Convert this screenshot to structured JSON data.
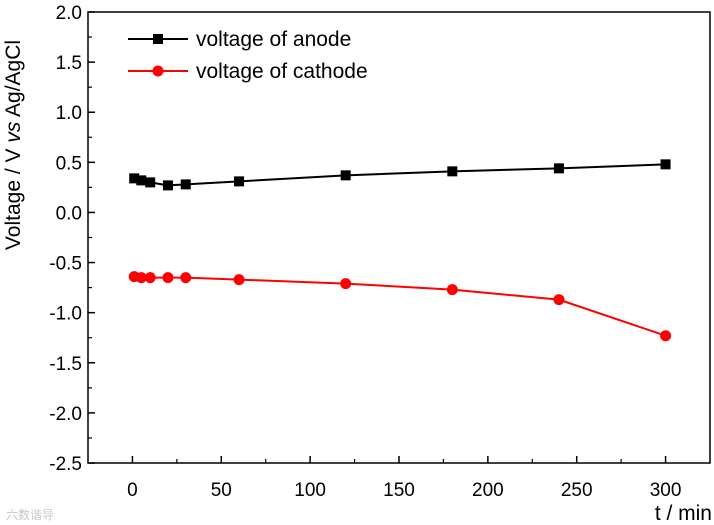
{
  "chart_data": {
    "type": "line",
    "xlabel": "t / min",
    "ylabel_parts": [
      "Voltage / V ",
      "vs",
      " Ag/AgCl"
    ],
    "xlim": [
      -25,
      325
    ],
    "ylim": [
      -2.5,
      2.0
    ],
    "xticks": [
      0,
      50,
      100,
      150,
      200,
      250,
      300
    ],
    "yticks": [
      -2.5,
      -2.0,
      -1.5,
      -1.0,
      -0.5,
      0.0,
      0.5,
      1.0,
      1.5,
      2.0
    ],
    "xtick_labels": [
      "0",
      "50",
      "100",
      "150",
      "200",
      "250",
      "300"
    ],
    "ytick_labels": [
      "-2.5",
      "-2.0",
      "-1.5",
      "-1.0",
      "-0.5",
      "0.0",
      "0.5",
      "1.0",
      "1.5",
      "2.0"
    ],
    "legend_position": "top-left",
    "series": [
      {
        "name": "voltage of anode",
        "color": "#000000",
        "marker": "square",
        "x": [
          1,
          5,
          10,
          20,
          30,
          60,
          120,
          180,
          240,
          300
        ],
        "y": [
          0.34,
          0.32,
          0.3,
          0.27,
          0.28,
          0.31,
          0.37,
          0.41,
          0.44,
          0.48
        ]
      },
      {
        "name": "voltage of cathode",
        "color": "#ff0000",
        "marker": "circle",
        "x": [
          1,
          5,
          10,
          20,
          30,
          60,
          120,
          180,
          240,
          300
        ],
        "y": [
          -0.64,
          -0.65,
          -0.65,
          -0.65,
          -0.65,
          -0.67,
          -0.71,
          -0.77,
          -0.87,
          -1.23
        ]
      }
    ]
  },
  "watermark": "六数谐导"
}
